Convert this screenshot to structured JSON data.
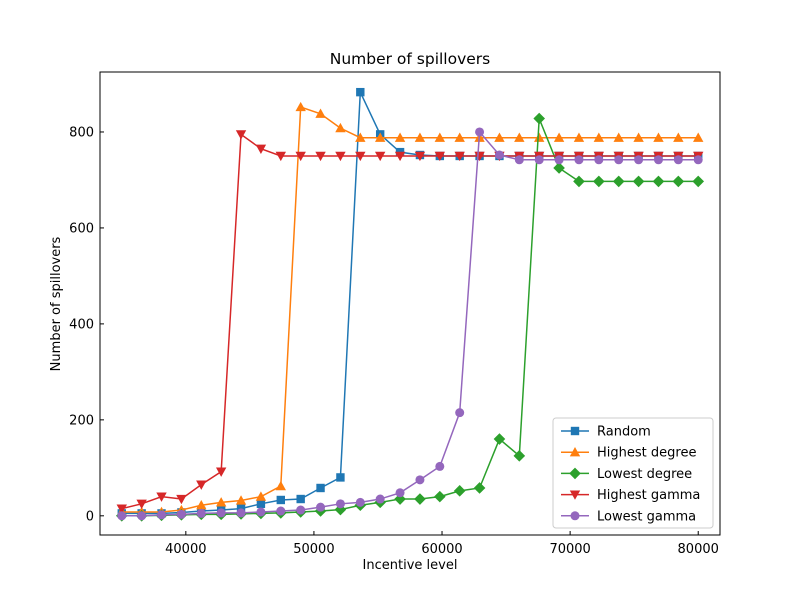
{
  "chart_data": {
    "type": "line",
    "title": "Number of spillovers",
    "xlabel": "Incentive level",
    "ylabel": "Number of spillovers",
    "xlim": [
      33300,
      81700
    ],
    "ylim": [
      -40,
      925
    ],
    "xticks": [
      40000,
      50000,
      60000,
      70000,
      80000
    ],
    "yticks": [
      0,
      200,
      400,
      600,
      800
    ],
    "legend_placement": "lower right",
    "grid": false,
    "x": [
      35000,
      36552,
      38103,
      39655,
      41207,
      42759,
      44310,
      45862,
      47414,
      48966,
      50517,
      52069,
      53621,
      55172,
      56724,
      58276,
      59828,
      61379,
      62931,
      64483,
      66034,
      67586,
      69138,
      70690,
      72241,
      73793,
      75345,
      76897,
      78448,
      80000
    ],
    "series": [
      {
        "name": "Random",
        "color": "#1f77b4",
        "marker": "square",
        "values": [
          5,
          5,
          5,
          7,
          10,
          12,
          15,
          25,
          33,
          35,
          58,
          80,
          883,
          795,
          758,
          752,
          750,
          750,
          750,
          750,
          750,
          750,
          750,
          750,
          750,
          750,
          750,
          750,
          750,
          750
        ]
      },
      {
        "name": "Highest degree",
        "color": "#ff7f0e",
        "marker": "triangle-up",
        "values": [
          8,
          8,
          8,
          12,
          22,
          28,
          32,
          40,
          62,
          852,
          838,
          808,
          788,
          788,
          788,
          788,
          788,
          788,
          788,
          788,
          788,
          788,
          788,
          788,
          788,
          788,
          788,
          788,
          788,
          788
        ]
      },
      {
        "name": "Lowest degree",
        "color": "#2ca02c",
        "marker": "diamond",
        "values": [
          0,
          0,
          1,
          2,
          3,
          3,
          4,
          5,
          6,
          8,
          10,
          13,
          22,
          28,
          35,
          35,
          40,
          52,
          58,
          160,
          125,
          828,
          725,
          697,
          697,
          697,
          697,
          697,
          697,
          697
        ]
      },
      {
        "name": "Highest gamma",
        "color": "#d62728",
        "marker": "triangle-down",
        "values": [
          15,
          25,
          40,
          35,
          65,
          92,
          795,
          765,
          750,
          750,
          750,
          750,
          750,
          750,
          750,
          750,
          750,
          750,
          750,
          750,
          750,
          750,
          750,
          750,
          750,
          750,
          750,
          750,
          750,
          750
        ]
      },
      {
        "name": "Lowest gamma",
        "color": "#9467bd",
        "marker": "circle",
        "values": [
          0,
          0,
          2,
          3,
          5,
          6,
          6,
          8,
          10,
          12,
          18,
          25,
          28,
          35,
          48,
          75,
          103,
          215,
          800,
          752,
          742,
          742,
          742,
          742,
          742,
          742,
          742,
          742,
          742,
          742
        ]
      }
    ]
  }
}
